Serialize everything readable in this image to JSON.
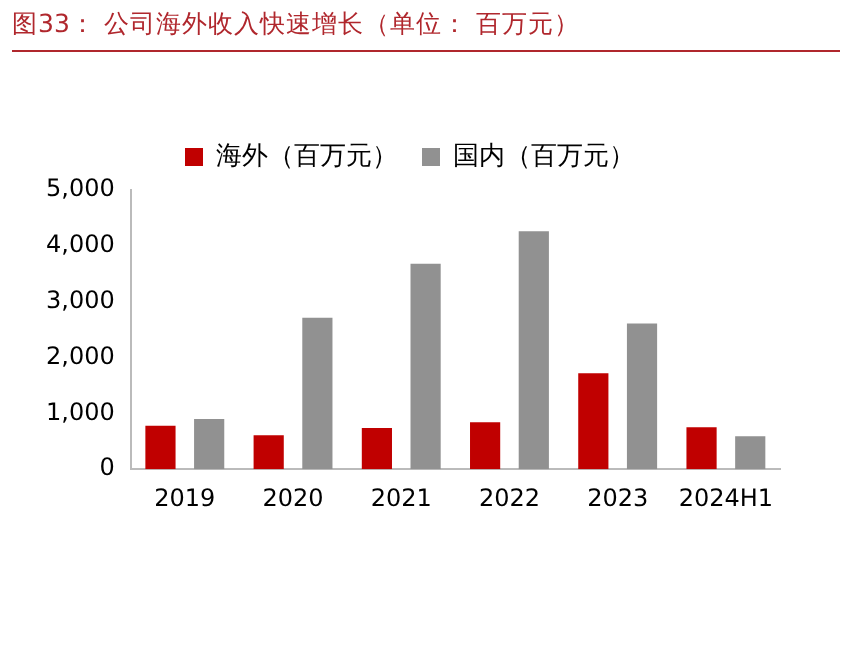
{
  "chart_data": {
    "type": "bar",
    "title": "图33：  公司海外收入快速增长（单位：  百万元）",
    "categories": [
      "2019",
      "2020",
      "2021",
      "2022",
      "2023",
      "2024H1"
    ],
    "series": [
      {
        "name": "海外（百万元）",
        "color": "#c00000",
        "values": [
          780,
          610,
          740,
          840,
          1720,
          750
        ]
      },
      {
        "name": "国内（百万元）",
        "color": "#919191",
        "values": [
          900,
          2710,
          3680,
          4260,
          2610,
          590
        ]
      }
    ],
    "ylim": [
      0,
      5000
    ],
    "yticks": [
      0,
      {
        "value": 1000,
        "label": "1,000"
      },
      {
        "value": 2000,
        "label": "2,000"
      },
      {
        "value": 3000,
        "label": "3,000"
      },
      {
        "value": 4000,
        "label": "4,000"
      },
      {
        "value": 5000,
        "label": "5,000"
      }
    ],
    "grid": false,
    "legend": "top"
  }
}
